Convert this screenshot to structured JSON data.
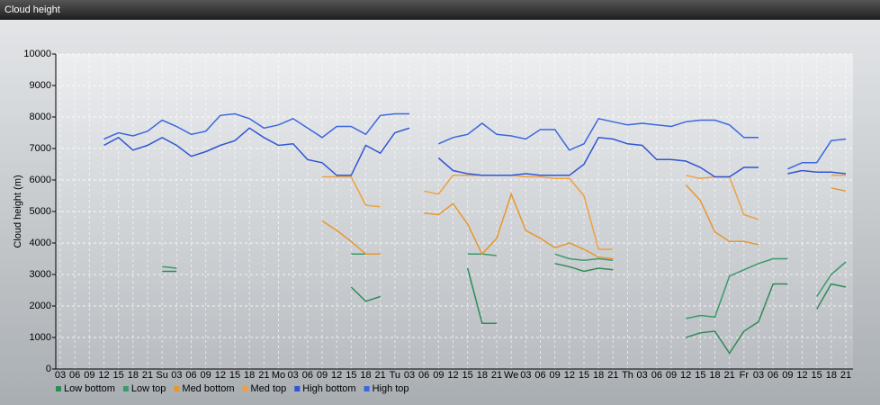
{
  "chart_data": {
    "type": "line",
    "title": "Cloud height",
    "y_label": "Cloud height (m)",
    "categories": [
      "03",
      "06",
      "09",
      "12",
      "15",
      "18",
      "21",
      "Su",
      "03",
      "06",
      "09",
      "12",
      "15",
      "18",
      "21",
      "Mo",
      "03",
      "06",
      "09",
      "12",
      "15",
      "18",
      "21",
      "Tu",
      "03",
      "06",
      "09",
      "12",
      "15",
      "18",
      "21",
      "We",
      "03",
      "06",
      "09",
      "12",
      "15",
      "18",
      "21",
      "Th",
      "03",
      "06",
      "09",
      "12",
      "15",
      "18",
      "21",
      "Fr",
      "03",
      "06",
      "09",
      "12",
      "15",
      "18",
      "21"
    ],
    "ylim": [
      0,
      10000
    ],
    "yticks": [
      0,
      1000,
      2000,
      3000,
      4000,
      5000,
      6000,
      7000,
      8000,
      9000,
      10000
    ],
    "grid": true,
    "series": [
      {
        "name": "Low bottom",
        "color": "#2e8b57",
        "values": [
          null,
          null,
          null,
          null,
          null,
          null,
          null,
          3100,
          3100,
          null,
          null,
          null,
          null,
          null,
          null,
          null,
          null,
          null,
          null,
          null,
          2600,
          2150,
          2300,
          null,
          null,
          null,
          null,
          null,
          3200,
          1450,
          1450,
          null,
          null,
          null,
          3350,
          3250,
          3100,
          3200,
          3150,
          null,
          null,
          null,
          null,
          1000,
          1150,
          1200,
          500,
          1200,
          1500,
          2700,
          2700,
          null,
          1900,
          2700,
          2600
        ]
      },
      {
        "name": "Low top",
        "color": "#3a9a6a",
        "values": [
          null,
          null,
          null,
          null,
          null,
          null,
          null,
          3250,
          3200,
          null,
          null,
          null,
          null,
          null,
          null,
          null,
          null,
          null,
          null,
          null,
          3650,
          3650,
          3650,
          null,
          null,
          null,
          null,
          null,
          3650,
          3650,
          3600,
          null,
          null,
          null,
          3650,
          3500,
          3450,
          3500,
          3450,
          null,
          null,
          null,
          null,
          1600,
          1700,
          1650,
          2950,
          3150,
          3350,
          3500,
          3500,
          null,
          2300,
          3000,
          3400
        ]
      },
      {
        "name": "Med bottom",
        "color": "#e8962e",
        "values": [
          null,
          null,
          null,
          null,
          null,
          null,
          null,
          null,
          null,
          null,
          null,
          null,
          null,
          null,
          null,
          null,
          null,
          null,
          4700,
          4400,
          4050,
          3650,
          3650,
          null,
          null,
          4950,
          4900,
          5250,
          4600,
          3650,
          4150,
          5550,
          4400,
          4150,
          3850,
          4000,
          3800,
          3550,
          3500,
          null,
          null,
          null,
          null,
          5850,
          5350,
          4350,
          4050,
          4050,
          3950,
          null,
          null,
          null,
          null,
          5750,
          5650
        ]
      },
      {
        "name": "Med top",
        "color": "#f0a040",
        "values": [
          null,
          null,
          null,
          null,
          null,
          null,
          null,
          null,
          null,
          null,
          null,
          null,
          null,
          null,
          null,
          null,
          null,
          null,
          6100,
          6100,
          6100,
          5200,
          5150,
          null,
          null,
          5650,
          5550,
          6150,
          6150,
          6150,
          6150,
          6150,
          6100,
          6100,
          6050,
          6050,
          5500,
          3800,
          3800,
          null,
          null,
          null,
          null,
          6150,
          6050,
          6100,
          6100,
          4900,
          4750,
          null,
          null,
          null,
          null,
          6150,
          6150
        ]
      },
      {
        "name": "High bottom",
        "color": "#2f55d4",
        "values": [
          null,
          null,
          null,
          7100,
          7350,
          6950,
          7100,
          7350,
          7100,
          6750,
          6900,
          7100,
          7250,
          7650,
          7350,
          7100,
          7150,
          6650,
          6550,
          6150,
          6150,
          7100,
          6850,
          7500,
          7650,
          null,
          6700,
          6300,
          6200,
          6150,
          6150,
          6150,
          6200,
          6150,
          6150,
          6150,
          6500,
          7350,
          7300,
          7150,
          7100,
          6650,
          6650,
          6600,
          6400,
          6100,
          6100,
          6400,
          6400,
          null,
          6200,
          6300,
          6250,
          6250,
          6200
        ]
      },
      {
        "name": "High top",
        "color": "#3a66e0",
        "values": [
          null,
          null,
          null,
          7300,
          7500,
          7400,
          7550,
          7900,
          7700,
          7450,
          7550,
          8050,
          8100,
          7950,
          7650,
          7750,
          7950,
          7650,
          7350,
          7700,
          7700,
          7450,
          8050,
          8100,
          8100,
          null,
          7150,
          7350,
          7450,
          7800,
          7450,
          7400,
          7300,
          7600,
          7600,
          6950,
          7150,
          7950,
          7850,
          7750,
          7800,
          7750,
          7700,
          7850,
          7900,
          7900,
          7750,
          7350,
          7350,
          null,
          6350,
          6550,
          6550,
          7250,
          7300
        ]
      }
    ]
  }
}
